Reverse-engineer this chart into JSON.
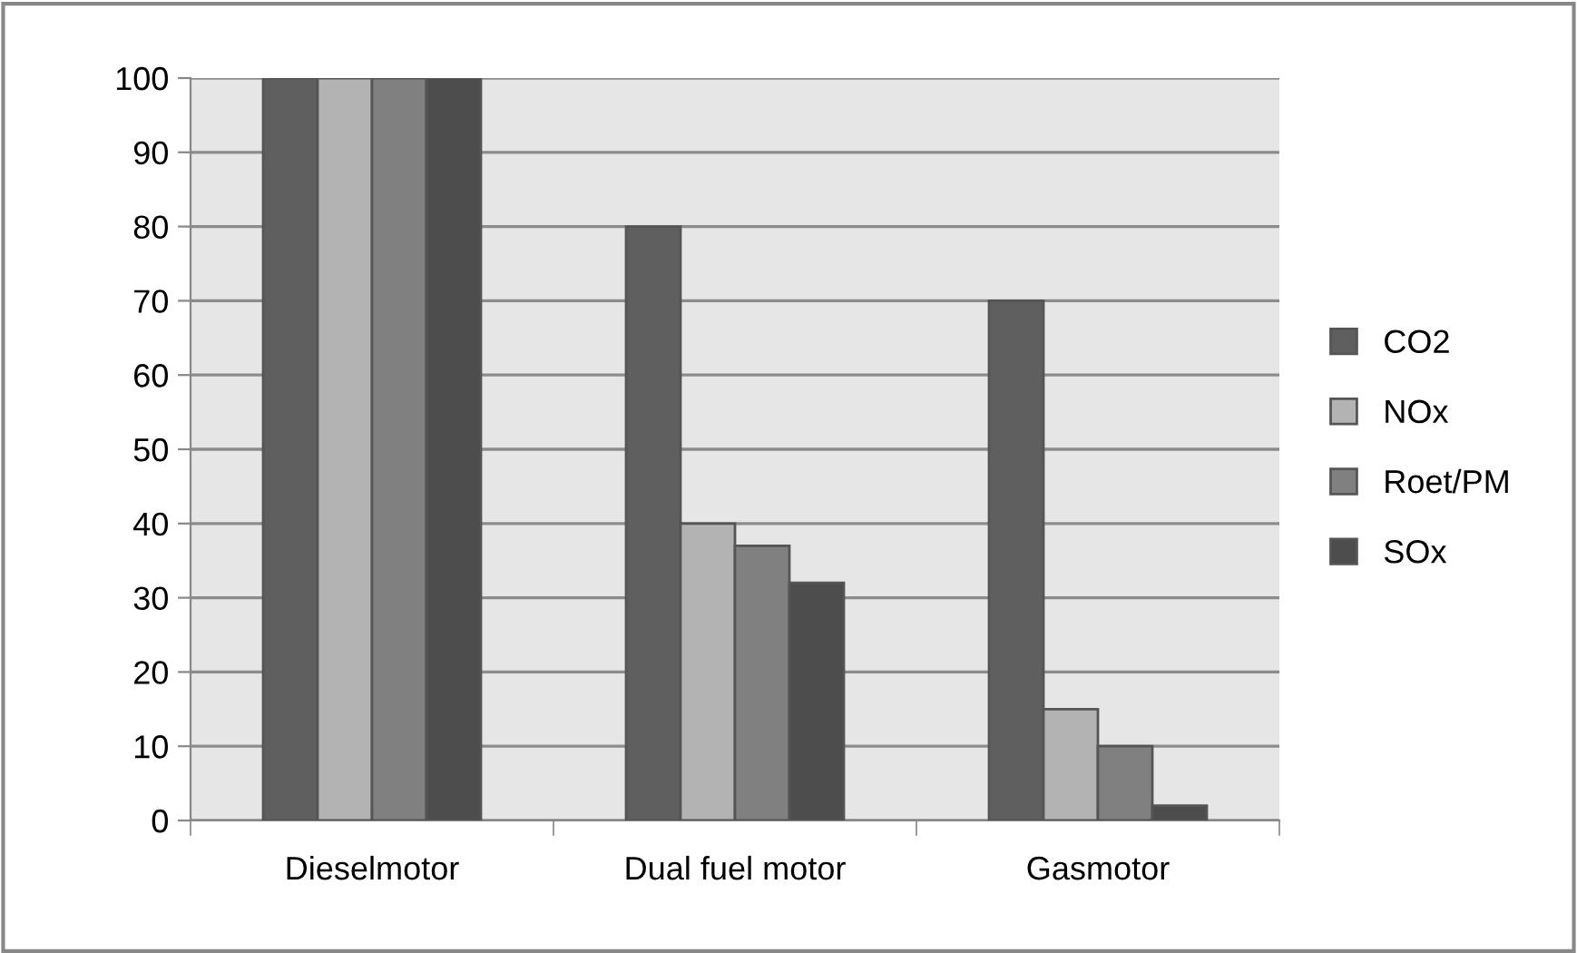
{
  "chart_data": {
    "type": "bar",
    "categories": [
      "Dieselmotor",
      "Dual fuel motor",
      "Gasmotor"
    ],
    "series": [
      {
        "name": "CO2",
        "color": "#5f5f5f",
        "values": [
          100,
          80,
          70
        ]
      },
      {
        "name": "NOx",
        "color": "#b3b3b3",
        "values": [
          100,
          40,
          15
        ]
      },
      {
        "name": "Roet/PM",
        "color": "#808080",
        "values": [
          100,
          37,
          10
        ]
      },
      {
        "name": "SOx",
        "color": "#4d4d4d",
        "values": [
          100,
          32,
          2
        ]
      }
    ],
    "ylim": [
      0,
      100
    ],
    "yticks": [
      0,
      10,
      20,
      30,
      40,
      50,
      60,
      70,
      80,
      90,
      100
    ],
    "grid": "y",
    "legend": "right"
  }
}
